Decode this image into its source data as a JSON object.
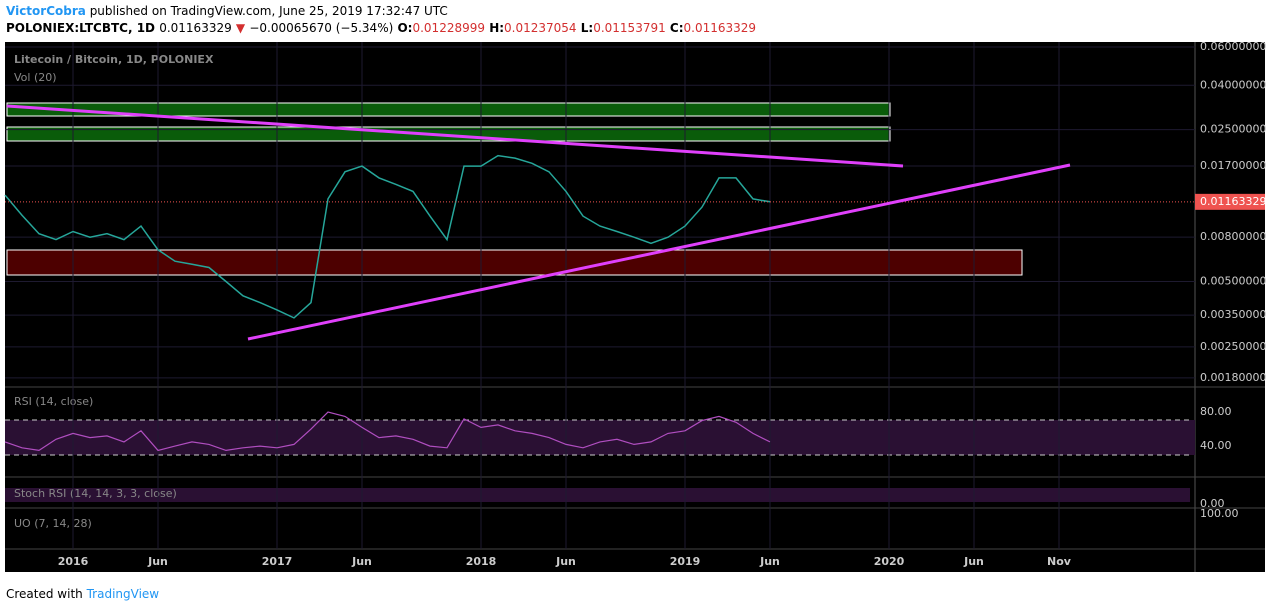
{
  "header": {
    "author": "VictorCobra",
    "published": "published on TradingView.com, June 25, 2019 17:32:47 UTC",
    "symbol": "POLONIEX:LTCBTC, 1D",
    "last": "0.01163329",
    "arrow": "▼",
    "change": "−0.00065670 (−5.34%)",
    "o_label": "O:",
    "o": "0.01228999",
    "h_label": "H:",
    "h": "0.01237054",
    "l_label": "L:",
    "l": "0.01153791",
    "c_label": "C:",
    "c": "0.01163329"
  },
  "footer": {
    "created": "Created with",
    "brand": "TradingView"
  },
  "chart_data": {
    "type": "line",
    "title": "Litecoin / Bitcoin, 1D, POLONIEX",
    "volume_label": "Vol (20)",
    "log_scale": true,
    "grid": true,
    "x": [
      "2015-09",
      "2015-10",
      "2015-11",
      "2015-12",
      "2016-01",
      "2016-02",
      "2016-03",
      "2016-04",
      "2016-05",
      "2016-06",
      "2016-07",
      "2016-08",
      "2016-09",
      "2016-10",
      "2016-11",
      "2016-12",
      "2017-01",
      "2017-02",
      "2017-03",
      "2017-04",
      "2017-05",
      "2017-06",
      "2017-07",
      "2017-08",
      "2017-09",
      "2017-10",
      "2017-11",
      "2017-12",
      "2018-01",
      "2018-02",
      "2018-03",
      "2018-04",
      "2018-05",
      "2018-06",
      "2018-07",
      "2018-08",
      "2018-09",
      "2018-10",
      "2018-11",
      "2018-12",
      "2019-01",
      "2019-02",
      "2019-03",
      "2019-04",
      "2019-05",
      "2019-06"
    ],
    "series": [
      {
        "name": "LTCBTC",
        "color": "#26a69a",
        "values": [
          0.0125,
          0.0101,
          0.0083,
          0.0078,
          0.0085,
          0.008,
          0.0083,
          0.0078,
          0.009,
          0.007,
          0.0062,
          0.006,
          0.0058,
          0.005,
          0.0043,
          0.004,
          0.0037,
          0.0034,
          0.004,
          0.012,
          0.016,
          0.017,
          0.015,
          0.014,
          0.013,
          0.01,
          0.0078,
          0.017,
          0.017,
          0.019,
          0.0185,
          0.0175,
          0.016,
          0.013,
          0.01,
          0.009,
          0.0085,
          0.008,
          0.0075,
          0.008,
          0.009,
          0.011,
          0.015,
          0.015,
          0.012,
          0.01163329
        ]
      }
    ],
    "last_price": {
      "value": 0.01163329,
      "label": "0.01163329"
    },
    "xlim": [
      "2015-09",
      "2021-07"
    ],
    "xticks": [
      {
        "value": "2016-01",
        "label": "2016"
      },
      {
        "value": "2016-06",
        "label": "Jun"
      },
      {
        "value": "2017-01",
        "label": "2017"
      },
      {
        "value": "2017-06",
        "label": "Jun"
      },
      {
        "value": "2018-01",
        "label": "2018"
      },
      {
        "value": "2018-06",
        "label": "Jun"
      },
      {
        "value": "2019-01",
        "label": "2019"
      },
      {
        "value": "2019-06",
        "label": "Jun"
      },
      {
        "value": "2020-01",
        "label": "2020"
      },
      {
        "value": "2020-06",
        "label": "Jun"
      },
      {
        "value": "2020-11",
        "label": "Nov"
      }
    ],
    "ylim": [
      0.00167,
      0.0633
    ],
    "yticks": [
      {
        "value": 0.06,
        "label": "0.06000000"
      },
      {
        "value": 0.04,
        "label": "0.04000000"
      },
      {
        "value": 0.025,
        "label": "0.02500000"
      },
      {
        "value": 0.017,
        "label": "0.01700000"
      },
      {
        "value": 0.008,
        "label": "0.00800000"
      },
      {
        "value": 0.005,
        "label": "0.00500000"
      },
      {
        "value": 0.0035,
        "label": "0.00350000"
      },
      {
        "value": 0.0025,
        "label": "0.00250000"
      },
      {
        "value": 0.0018,
        "label": "0.00180000"
      }
    ],
    "rsi": {
      "label": "RSI (14, close)",
      "color": "#b04ec0",
      "ylim": [
        6,
        106
      ],
      "yticks": [
        {
          "value": 80,
          "label": "80.00"
        },
        {
          "value": 40,
          "label": "40.00"
        }
      ],
      "values": [
        45,
        38,
        35,
        48,
        55,
        50,
        52,
        45,
        58,
        35,
        40,
        45,
        42,
        35,
        38,
        40,
        38,
        42,
        60,
        80,
        75,
        62,
        50,
        52,
        48,
        40,
        38,
        72,
        62,
        65,
        58,
        55,
        50,
        42,
        38,
        45,
        48,
        42,
        45,
        55,
        58,
        70,
        75,
        68,
        55,
        45
      ]
    },
    "stoch_label": "Stoch RSI (14, 14, 3, 3, close)",
    "stoch_tick": "0.00",
    "uo_label": "UO (7, 14, 28)",
    "uo_tick": "100.00"
  }
}
